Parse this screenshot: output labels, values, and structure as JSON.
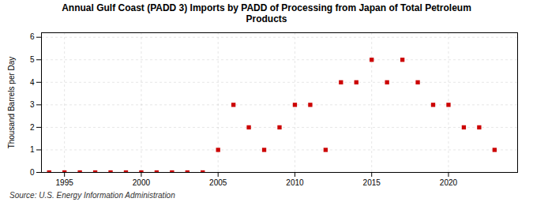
{
  "chart_data": {
    "type": "scatter",
    "title": "Annual Gulf Coast (PADD 3) Imports by PADD of Processing from Japan of Total Petroleum\nProducts",
    "ylabel": "Thousand Barrels per Day",
    "source": "Source: U.S. Energy Information Administration",
    "x": [
      1994,
      1995,
      1996,
      1997,
      1998,
      1999,
      2000,
      2001,
      2002,
      2003,
      2004,
      2005,
      2006,
      2007,
      2008,
      2009,
      2010,
      2011,
      2012,
      2013,
      2014,
      2015,
      2016,
      2017,
      2018,
      2019,
      2020,
      2021,
      2022,
      2023
    ],
    "values": [
      0,
      0,
      0,
      0,
      0,
      0,
      0,
      0,
      0,
      0,
      0,
      1,
      3,
      2,
      1,
      2,
      3,
      3,
      1,
      4,
      4,
      5,
      4,
      5,
      4,
      3,
      3,
      2,
      2,
      1
    ],
    "color": "#cc0000",
    "marker": "square",
    "xlim": [
      1993.5,
      2024.5
    ],
    "ylim": [
      0,
      6.2
    ],
    "xticks": [
      1995,
      2000,
      2005,
      2010,
      2015,
      2020
    ],
    "yticks": [
      0,
      1,
      2,
      3,
      4,
      5,
      6
    ],
    "grid": true
  }
}
